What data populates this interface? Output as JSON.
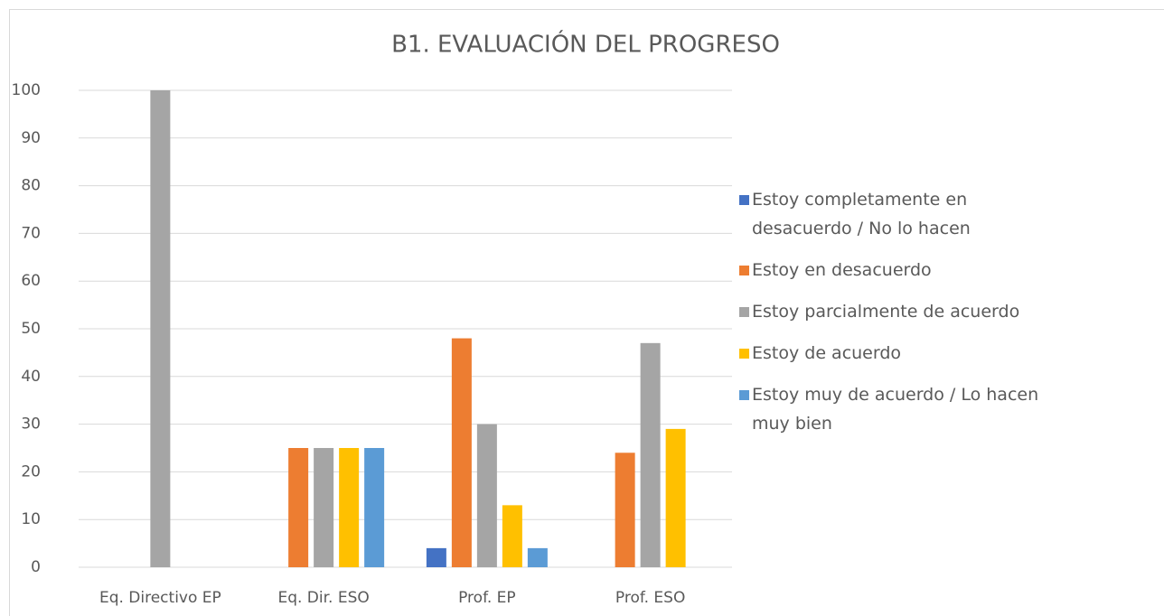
{
  "chart_data": {
    "type": "bar",
    "title": "B1. EVALUACIÓN DEL PROGRESO",
    "categories": [
      "Eq. Directivo EP",
      "Eq. Dir. ESO",
      "Prof. EP",
      "Prof. ESO"
    ],
    "series": [
      {
        "name": "Estoy completamente en desacuerdo / No lo hacen",
        "color": "#4472c4",
        "values": [
          0,
          0,
          4,
          0
        ]
      },
      {
        "name": "Estoy en desacuerdo",
        "color": "#ed7d31",
        "values": [
          0,
          25,
          48,
          24
        ]
      },
      {
        "name": "Estoy parcialmente de acuerdo",
        "color": "#a5a5a5",
        "values": [
          100,
          25,
          30,
          47
        ]
      },
      {
        "name": "Estoy de acuerdo",
        "color": "#ffc000",
        "values": [
          0,
          25,
          13,
          29
        ]
      },
      {
        "name": "Estoy muy de acuerdo / Lo hacen muy bien",
        "color": "#5b9bd5",
        "values": [
          0,
          25,
          4,
          0
        ]
      }
    ],
    "ylim": [
      0,
      100
    ],
    "yticks": [
      0,
      10,
      20,
      30,
      40,
      50,
      60,
      70,
      80,
      90,
      100
    ],
    "grid": true,
    "legend": "right"
  }
}
